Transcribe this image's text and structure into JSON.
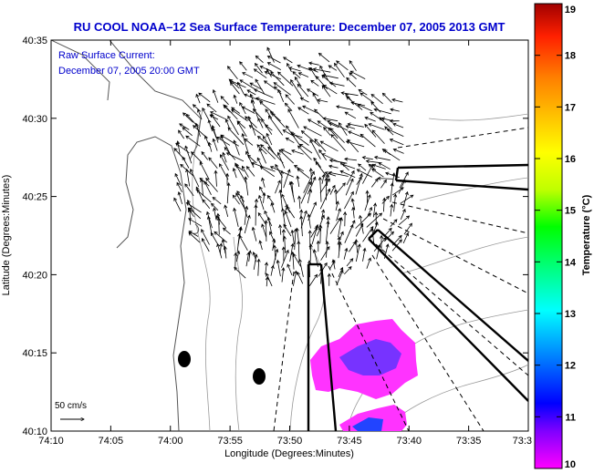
{
  "chart_data": {
    "type": "heatmap",
    "title": "RU COOL  NOAA–12  Sea Surface Temperature:  December 07, 2005 2013 GMT",
    "inset_title": "Raw Surface Current:",
    "inset_time": "December 07, 2005 20:00 GMT",
    "xlabel": "Longitude (Degrees:Minutes)",
    "ylabel": "Latitude (Degrees:Minutes)",
    "x_ticks": [
      "74:10",
      "74:05",
      "74:00",
      "73:55",
      "73:50",
      "73:45",
      "73:40",
      "73:35",
      "73:3"
    ],
    "y_ticks": [
      "40:35",
      "40:30",
      "40:25",
      "40:20",
      "40:15",
      "40:10"
    ],
    "xlim": [
      "74:10",
      "73:30"
    ],
    "ylim": [
      "40:10",
      "40:35"
    ],
    "colorbar": {
      "label": "Temperature (°C)",
      "min": 10,
      "max": 19,
      "ticks": [
        "19",
        "18",
        "17",
        "16",
        "15",
        "14",
        "13",
        "12",
        "11",
        "10"
      ],
      "colors": [
        "#ff00ff",
        "#8000ff",
        "#0000ff",
        "#0080ff",
        "#00ffff",
        "#00ff80",
        "#00ff00",
        "#c0ff00",
        "#ffff00",
        "#ffc000",
        "#ff8000",
        "#ff2000",
        "#a00000"
      ]
    },
    "scale_label": "50 cm/s",
    "colors": {
      "title": "#0000cc",
      "sst_patch_cold": "#7733ff",
      "sst_patch_warm": "#ff33ff"
    }
  }
}
